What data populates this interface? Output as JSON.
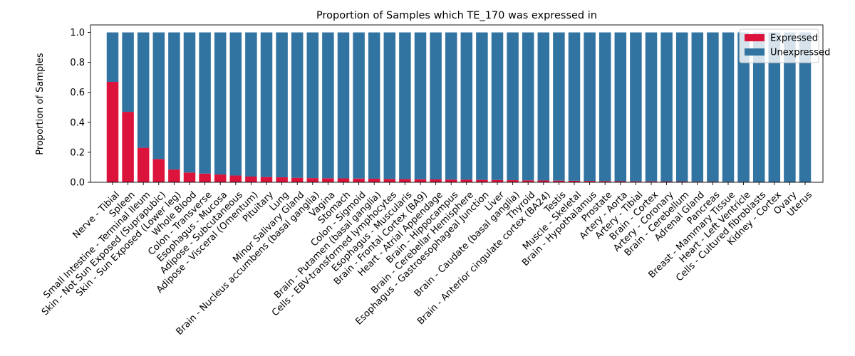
{
  "chart_data": {
    "type": "bar",
    "stacked": true,
    "title": "Proportion of Samples which TE_170 was expressed in",
    "xlabel": "",
    "ylabel": "Proportion of Samples",
    "ylim": [
      0,
      1.05
    ],
    "yticks": [
      "0.0",
      "0.2",
      "0.4",
      "0.6",
      "0.8",
      "1.0"
    ],
    "legend_position": "top-right",
    "grid": false,
    "colors": {
      "Expressed": "#dc143c",
      "Unexpressed": "#3274a1"
    },
    "categories": [
      "Nerve - Tibial",
      "Spleen",
      "Small Intestine - Terminal Ileum",
      "Skin - Not Sun Exposed (Suprapubic)",
      "Skin - Sun Exposed (Lower leg)",
      "Whole Blood",
      "Colon - Transverse",
      "Esophagus - Mucosa",
      "Adipose - Subcutaneous",
      "Adipose - Visceral (Omentum)",
      "Pituitary",
      "Lung",
      "Minor Salivary Gland",
      "Brain - Nucleus accumbens (basal ganglia)",
      "Vagina",
      "Stomach",
      "Colon - Sigmoid",
      "Brain - Putamen (basal ganglia)",
      "Cells - EBV-transformed lymphocytes",
      "Esophagus - Muscularis",
      "Brain - Frontal Cortex (BA9)",
      "Heart - Atrial Appendage",
      "Brain - Hippocampus",
      "Brain - Cerebellar Hemisphere",
      "Esophagus - Gastroesophageal Junction",
      "Liver",
      "Brain - Caudate (basal ganglia)",
      "Thyroid",
      "Brain - Anterior cingulate cortex (BA24)",
      "Testis",
      "Muscle - Skeletal",
      "Brain - Hypothalamus",
      "Prostate",
      "Artery - Aorta",
      "Artery - Tibial",
      "Brain - Cortex",
      "Artery - Coronary",
      "Brain - Cerebellum",
      "Adrenal Gland",
      "Pancreas",
      "Breast - Mammary Tissue",
      "Heart - Left Ventricle",
      "Cells - Cultured fibroblasts",
      "Kidney - Cortex",
      "Ovary",
      "Uterus"
    ],
    "series": [
      {
        "name": "Expressed",
        "values": [
          0.67,
          0.47,
          0.23,
          0.155,
          0.085,
          0.065,
          0.058,
          0.052,
          0.045,
          0.038,
          0.035,
          0.033,
          0.03,
          0.028,
          0.027,
          0.026,
          0.025,
          0.024,
          0.022,
          0.021,
          0.02,
          0.019,
          0.018,
          0.017,
          0.016,
          0.015,
          0.014,
          0.013,
          0.012,
          0.011,
          0.01,
          0.009,
          0.008,
          0.007,
          0.006,
          0.006,
          0.005,
          0.005,
          0.004,
          0.004,
          0.003,
          0.003,
          0.002,
          0.002,
          0.0,
          0.0
        ]
      },
      {
        "name": "Unexpressed",
        "values": [
          0.33,
          0.53,
          0.77,
          0.845,
          0.915,
          0.935,
          0.942,
          0.948,
          0.955,
          0.962,
          0.965,
          0.967,
          0.97,
          0.972,
          0.973,
          0.974,
          0.975,
          0.976,
          0.978,
          0.979,
          0.98,
          0.981,
          0.982,
          0.983,
          0.984,
          0.985,
          0.986,
          0.987,
          0.988,
          0.989,
          0.99,
          0.991,
          0.992,
          0.993,
          0.994,
          0.994,
          0.995,
          0.995,
          0.996,
          0.996,
          0.997,
          0.997,
          0.998,
          0.998,
          1.0,
          1.0
        ]
      }
    ]
  }
}
